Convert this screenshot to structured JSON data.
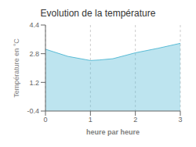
{
  "chart_data": {
    "type": "area",
    "title": "Evolution de la température",
    "xlabel": "heure par heure",
    "ylabel": "Température en °C",
    "x": [
      0,
      0.5,
      1.0,
      1.2,
      1.5,
      2.0,
      2.5,
      3.0
    ],
    "values": [
      3.05,
      2.65,
      2.42,
      2.45,
      2.52,
      2.85,
      3.1,
      3.38
    ],
    "color": "#5bbcd6",
    "xlim": [
      0,
      3
    ],
    "ylim": [
      -0.4,
      4.4
    ],
    "xticks": [
      0,
      1,
      2,
      3
    ],
    "yticks": [
      -0.4,
      1.2,
      2.8,
      4.4
    ],
    "grid": "x"
  }
}
